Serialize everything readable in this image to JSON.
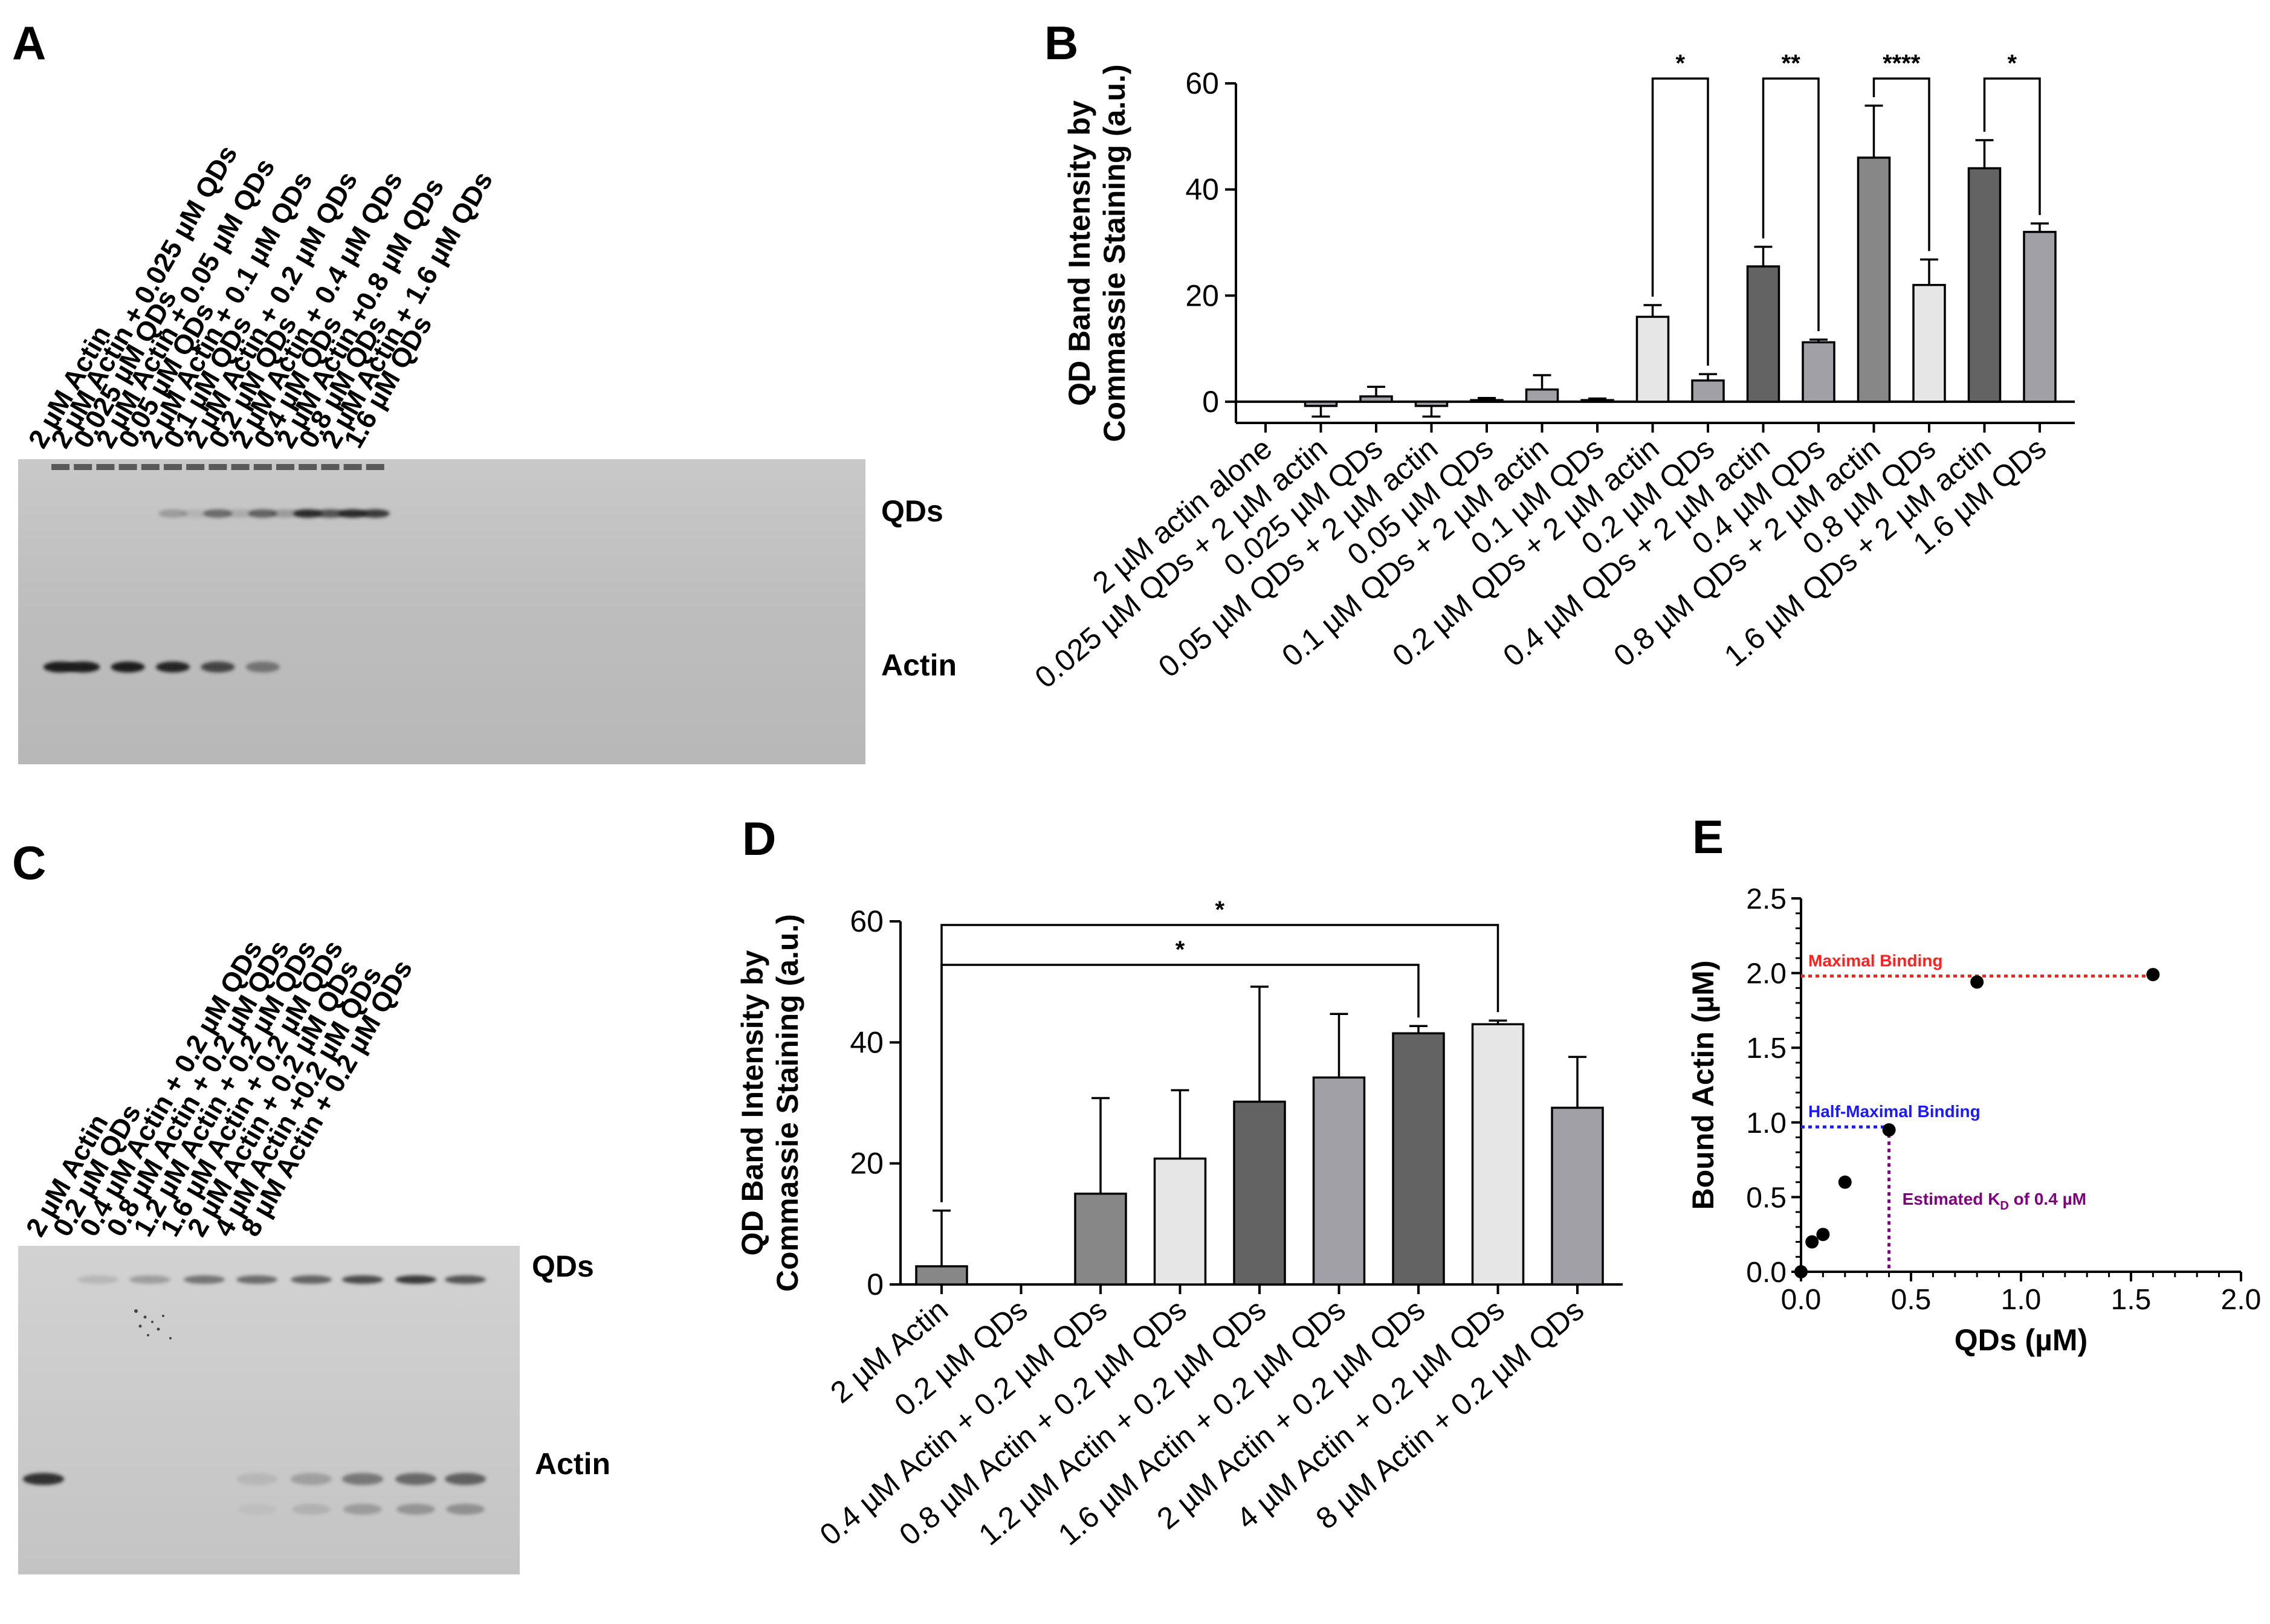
{
  "panels": {
    "A": {
      "letter": "A",
      "lanes": [
        "2 µM Actin",
        "2 µM Actin + 0.025 µM QDs",
        "0.025 µM QDs",
        "2 µM Actin + 0.05 µM QDs",
        "0.05 µM QDs",
        "2 µM Actin + 0.1 µM QDs",
        "0.1 µM QDs",
        "2 µM Actin + 0.2 µM QDs",
        "0.2 µM QDs",
        "2 µM Actin + 0.4 µM QDs",
        "0.4 µM QDs",
        "2 µM Actin +0.8 µM QDs",
        "0.8 µM QDs",
        "2 µM Actin + 1.6 µM QDs",
        "1.6 µM QDs"
      ],
      "qd_label": "QDs",
      "actin_label": "Actin"
    },
    "B": {
      "letter": "B"
    },
    "C": {
      "letter": "C",
      "lanes": [
        "2 µM Actin",
        "0.2 µM QDs",
        "0.4 µM Actin + 0.2 µM QDs",
        "0.8 µM Actin + 0.2 µM QDs",
        "1.2 µM Actin + 0.2 µM QDs",
        "1.6 µM Actin + 0.2 µM QDs",
        "2 µM Actin + 0.2 µM QDs",
        "4 µM Actin +0.2 µM QDs",
        "8 µM Actin + 0.2 µM QDs"
      ],
      "qd_label": "QDs",
      "actin_label": "Actin"
    },
    "D": {
      "letter": "D"
    },
    "E": {
      "letter": "E"
    }
  },
  "chart_data": [
    {
      "id": "B",
      "type": "bar",
      "ylabel_line1": "QD Band Intensity by",
      "ylabel_line2": "Commassie Staining (a.u.)",
      "ylim": [
        -4,
        60
      ],
      "yticks": [
        0,
        20,
        40,
        60
      ],
      "categories": [
        "2 µM actin alone",
        "0.025 µM QDs + 2 µM actin",
        "0.025 µM QDs",
        "0.05 µM QDs + 2 µM actin",
        "0.05 µM QDs",
        "0.1 µM QDs + 2 µM actin",
        "0.1 µM QDs",
        "0.2 µM QDs + 2 µM actin",
        "0.2 µM QDs",
        "0.4 µM QDs + 2 µM actin",
        "0.4 µM QDs",
        "0.8 µM QDs + 2 µM actin",
        "0.8 µM QDs",
        "1.6 µM QDs + 2 µM actin",
        "1.6 µM QDs"
      ],
      "values": [
        0,
        -0.8,
        1,
        -0.8,
        0.3,
        2.3,
        0.3,
        16,
        4,
        25.5,
        11.2,
        46,
        22,
        44,
        32
      ],
      "errors": [
        0,
        2,
        1.8,
        2,
        0.4,
        2.7,
        0.3,
        2.2,
        1.2,
        3.7,
        0.5,
        9.8,
        4.8,
        5.3,
        1.6
      ],
      "colors": [
        "#ffffff",
        "#a0a0a6",
        "#a0a0a6",
        "#a0a0a6",
        "#a0a0a6",
        "#a0a0a6",
        "#a0a0a6",
        "#e6e6e6",
        "#a0a0a6",
        "#636363",
        "#a0a0a6",
        "#878787",
        "#e6e6e6",
        "#636363",
        "#a0a0a6"
      ],
      "significance": [
        {
          "pair": [
            7,
            8
          ],
          "label": "*"
        },
        {
          "pair": [
            9,
            10
          ],
          "label": "**"
        },
        {
          "pair": [
            11,
            12
          ],
          "label": "****"
        },
        {
          "pair": [
            13,
            14
          ],
          "label": "*"
        }
      ]
    },
    {
      "id": "D",
      "type": "bar",
      "ylabel_line1": "QD Band Intensity by",
      "ylabel_line2": "Commassie Staining (a.u.)",
      "ylim": [
        0,
        60
      ],
      "yticks": [
        0,
        20,
        40,
        60
      ],
      "categories": [
        "2 µM Actin",
        "0.2 µM QDs",
        "0.4 µM Actin + 0.2 µM QDs",
        "0.8 µM Actin + 0.2 µM QDs",
        "1.2 µM Actin + 0.2 µM QDs",
        "1.6 µM Actin + 0.2 µM QDs",
        "2 µM Actin + 0.2 µM QDs",
        "4 µM Actin + 0.2 µM QDs",
        "8 µM Actin + 0.2 µM QDs"
      ],
      "values": [
        3,
        0,
        15,
        20.8,
        30.2,
        34.2,
        41.5,
        43,
        29.2
      ],
      "errors": [
        9.2,
        0,
        15.8,
        11.3,
        19,
        10.5,
        1.2,
        0.6,
        8.4
      ],
      "colors": [
        "#878787",
        "#a0a0a6",
        "#878787",
        "#e6e6e6",
        "#636363",
        "#a0a0a6",
        "#636363",
        "#e6e6e6",
        "#a0a0a6"
      ],
      "significance": [
        {
          "pair": [
            0,
            6
          ],
          "label": "*"
        },
        {
          "pair": [
            0,
            7
          ],
          "label": "*"
        }
      ]
    },
    {
      "id": "E",
      "type": "scatter",
      "xlabel": "QDs (µM)",
      "ylabel": "Bound Actin (µM)",
      "xlim": [
        0,
        2.0
      ],
      "ylim": [
        0,
        2.5
      ],
      "xticks": [
        "0.0",
        "0.5",
        "1.0",
        "1.5",
        "2.0"
      ],
      "yticks": [
        "0.0",
        "0.5",
        "1.0",
        "1.5",
        "2.0",
        "2.5"
      ],
      "x": [
        0,
        0.05,
        0.1,
        0.2,
        0.4,
        0.8,
        1.6
      ],
      "y": [
        0,
        0.2,
        0.25,
        0.6,
        0.95,
        1.94,
        1.99
      ],
      "max_binding": {
        "y": 1.98,
        "label": "Maximal Binding",
        "color": "#ff2020"
      },
      "half_binding": {
        "y": 0.97,
        "x": 0.4,
        "label": "Half-Maximal Binding",
        "color": "#1a1aff"
      },
      "kd": {
        "x": 0.4,
        "label_prefix": "Estimated K",
        "label_sub": "D",
        "label_suffix": " of 0.4 µM",
        "color": "#800080"
      }
    }
  ]
}
